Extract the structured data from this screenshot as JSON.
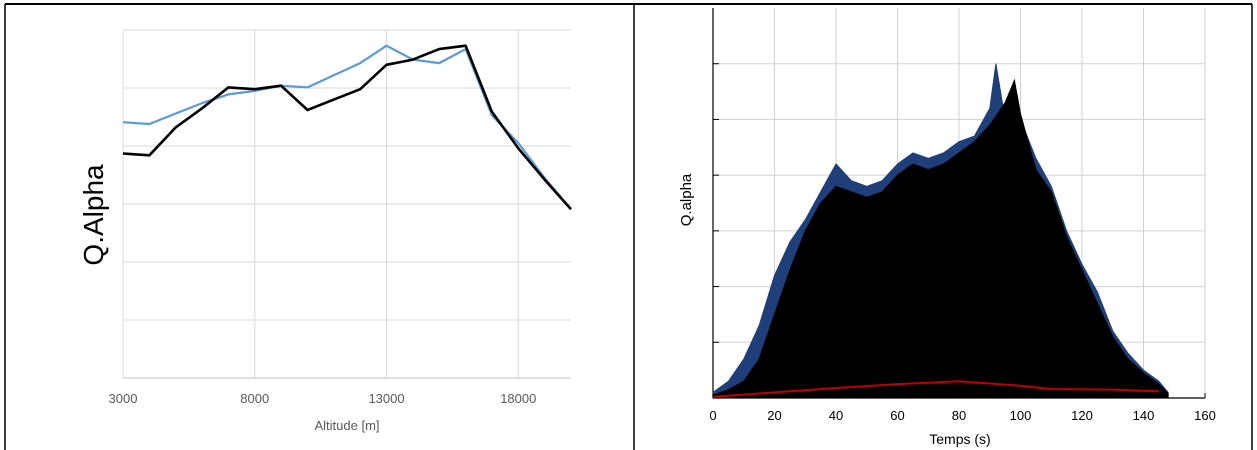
{
  "chart_data": [
    {
      "type": "line",
      "title": "",
      "xlabel": "Altitude [m]",
      "ylabel": "Q.Alpha",
      "xlim": [
        3000,
        20000
      ],
      "ylim": [
        0,
        1
      ],
      "grid": true,
      "y_tick_labels_shown": false,
      "x_tick_labels": [
        "3000",
        "8000",
        "13000",
        "18000"
      ],
      "x_ticks": [
        3000,
        8000,
        13000,
        18000
      ],
      "series": [
        {
          "color": "#5b9bd5",
          "x": [
            3000,
            4000,
            5000,
            6000,
            7000,
            8000,
            9000,
            10000,
            11000,
            12000,
            13000,
            14000,
            15000,
            16000,
            17000,
            18000,
            19000,
            20000
          ],
          "y": [
            0.735,
            0.73,
            0.76,
            0.79,
            0.815,
            0.825,
            0.84,
            0.835,
            0.87,
            0.905,
            0.955,
            0.915,
            0.905,
            0.945,
            0.755,
            0.675,
            0.575,
            0.485
          ]
        },
        {
          "color": "#000000",
          "x": [
            3000,
            4000,
            5000,
            6000,
            7000,
            8000,
            9000,
            10000,
            11000,
            12000,
            13000,
            14000,
            15000,
            16000,
            17000,
            18000,
            19000,
            20000
          ],
          "y": [
            0.645,
            0.64,
            0.72,
            0.775,
            0.835,
            0.83,
            0.84,
            0.77,
            0.8,
            0.83,
            0.9,
            0.915,
            0.945,
            0.955,
            0.765,
            0.66,
            0.57,
            0.485
          ]
        }
      ]
    },
    {
      "type": "area",
      "title": "",
      "xlabel": "Temps (s)",
      "ylabel": "Q.alpha",
      "xlim": [
        0,
        160
      ],
      "ylim": [
        0,
        7
      ],
      "grid": true,
      "y_tick_labels_shown": false,
      "x_tick_labels": [
        "0",
        "20",
        "40",
        "60",
        "80",
        "100",
        "120",
        "140",
        "160"
      ],
      "x_ticks": [
        0,
        20,
        40,
        60,
        80,
        100,
        120,
        140,
        160
      ],
      "series": [
        {
          "color": "#1f3f7a",
          "x": [
            0,
            5,
            10,
            15,
            20,
            25,
            30,
            35,
            40,
            45,
            50,
            55,
            60,
            65,
            70,
            75,
            80,
            85,
            90,
            92,
            95,
            100,
            105,
            110,
            115,
            120,
            125,
            130,
            135,
            140,
            145,
            148
          ],
          "y": [
            0.1,
            0.3,
            0.7,
            1.3,
            2.2,
            2.8,
            3.2,
            3.7,
            4.2,
            3.9,
            3.8,
            3.9,
            4.2,
            4.4,
            4.3,
            4.4,
            4.6,
            4.7,
            5.2,
            6.0,
            5.0,
            5.0,
            4.3,
            3.8,
            3.0,
            2.4,
            1.9,
            1.2,
            0.8,
            0.5,
            0.3,
            0.1
          ]
        },
        {
          "color": "#000000",
          "x": [
            0,
            5,
            10,
            15,
            20,
            25,
            30,
            35,
            40,
            45,
            50,
            55,
            60,
            65,
            70,
            75,
            80,
            85,
            90,
            95,
            98,
            100,
            105,
            110,
            115,
            120,
            125,
            130,
            135,
            140,
            145,
            148
          ],
          "y": [
            0.05,
            0.15,
            0.3,
            0.7,
            1.5,
            2.3,
            3.0,
            3.5,
            3.8,
            3.7,
            3.6,
            3.7,
            4.0,
            4.2,
            4.1,
            4.2,
            4.4,
            4.6,
            4.9,
            5.3,
            5.7,
            5.1,
            4.1,
            3.7,
            2.9,
            2.3,
            1.7,
            1.1,
            0.7,
            0.45,
            0.25,
            0.08
          ]
        },
        {
          "color": "#c00000",
          "x": [
            0,
            20,
            40,
            60,
            80,
            100,
            110,
            130,
            145
          ],
          "y": [
            0.02,
            0.1,
            0.18,
            0.25,
            0.3,
            0.22,
            0.16,
            0.15,
            0.12
          ]
        }
      ]
    }
  ]
}
